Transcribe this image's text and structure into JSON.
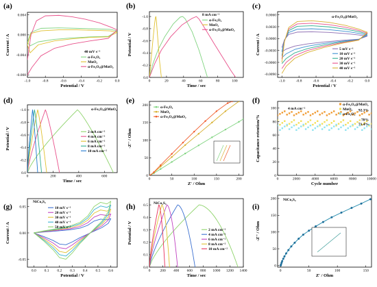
{
  "chart_data": [
    {
      "id": "a",
      "type": "line",
      "panel_label": "(a)",
      "xlabel": "Potential / V",
      "ylabel": "Current / A",
      "xlim": [
        -1.0,
        0.0
      ],
      "ylim": [
        -0.0085,
        0.0045
      ],
      "xreverse": false,
      "xticks": [
        -1.0,
        -0.8,
        -0.6,
        -0.4,
        -0.2,
        0.0
      ],
      "xticklabels": [
        "-1.0",
        "-0.8",
        "-0.6",
        "-0.4",
        "-0.2",
        "0.0"
      ],
      "yticks": [
        -0.008,
        -0.004,
        0.0,
        0.004
      ],
      "yticklabels": [
        "-0.008",
        "-0.004",
        "0.000",
        "0.004"
      ],
      "annotation": "40 mV s⁻¹",
      "series": [
        {
          "name": "α-Fe₂O₃",
          "color": "#7fd37f",
          "x": [
            -1.0,
            -0.96,
            -0.85,
            -0.65,
            -0.45,
            -0.25,
            -0.08,
            0.0,
            -0.1,
            -0.3,
            -0.5,
            -0.7,
            -0.88,
            -0.97,
            -1.0
          ],
          "y": [
            -0.0015,
            0.0005,
            0.0013,
            0.0014,
            0.0013,
            0.0012,
            0.0011,
            0.0008,
            -0.0003,
            -0.0004,
            -0.0006,
            -0.0009,
            -0.0014,
            -0.0022,
            -0.0015
          ]
        },
        {
          "name": "MnO₂",
          "color": "#e0c030",
          "x": [
            -1.0,
            -0.96,
            -0.85,
            -0.65,
            -0.45,
            -0.25,
            -0.08,
            0.0,
            -0.1,
            -0.3,
            -0.5,
            -0.7,
            -0.88,
            -0.97,
            -1.0
          ],
          "y": [
            -0.002,
            0.0003,
            0.0008,
            0.001,
            0.001,
            0.0009,
            0.0008,
            0.0005,
            -0.0004,
            -0.0005,
            -0.0008,
            -0.0012,
            -0.002,
            -0.0036,
            -0.002
          ]
        },
        {
          "name": "α-Fe₂O₃@MnO₂",
          "color": "#e8508a",
          "x": [
            -1.0,
            -0.96,
            -0.9,
            -0.8,
            -0.65,
            -0.5,
            -0.35,
            -0.2,
            -0.08,
            0.0,
            -0.1,
            -0.3,
            -0.5,
            -0.7,
            -0.85,
            -0.95,
            -1.0
          ],
          "y": [
            -0.005,
            0.0,
            0.0028,
            0.0038,
            0.0039,
            0.0036,
            0.0031,
            0.0024,
            0.0016,
            0.001,
            -0.0007,
            -0.0012,
            -0.0018,
            -0.0027,
            -0.0042,
            -0.0065,
            -0.008
          ]
        }
      ]
    },
    {
      "id": "b",
      "type": "line",
      "panel_label": "(b)",
      "xlabel": "Time / sec",
      "ylabel": "Potential / V",
      "xlim": [
        0,
        110
      ],
      "ylim": [
        0.0,
        -1.08
      ],
      "xreverse": false,
      "xticks": [
        0,
        20,
        40,
        60,
        80,
        100
      ],
      "xticklabels": [
        "0",
        "20",
        "40",
        "60",
        "80",
        "100"
      ],
      "yticks": [
        0.0,
        -0.2,
        -0.4,
        -0.6,
        -0.8,
        -1.0
      ],
      "yticklabels": [
        "0.0",
        "-0.2",
        "-0.4",
        "-0.6",
        "-0.8",
        "-1.0"
      ],
      "annotation": "8 mA cm⁻²",
      "series": [
        {
          "name": "α-Fe₂O₃",
          "color": "#7fd37f",
          "x": [
            0,
            4,
            10,
            18,
            28,
            36,
            39,
            42,
            50,
            58,
            68
          ],
          "y": [
            0,
            -0.22,
            -0.45,
            -0.67,
            -0.88,
            -0.99,
            -1.0,
            -0.96,
            -0.75,
            -0.45,
            0
          ]
        },
        {
          "name": "MnO₂",
          "color": "#e0c030",
          "x": [
            0,
            2,
            4,
            6,
            7,
            7.5,
            8,
            10,
            12,
            14
          ],
          "y": [
            0,
            -0.3,
            -0.6,
            -0.88,
            -0.98,
            -1.0,
            -0.96,
            -0.6,
            -0.25,
            0
          ]
        },
        {
          "name": "α-Fe₂O₃@MnO₂",
          "color": "#e8508a",
          "x": [
            0,
            6,
            14,
            25,
            38,
            50,
            55,
            58,
            66,
            76,
            88,
            96,
            101
          ],
          "y": [
            0,
            -0.22,
            -0.45,
            -0.67,
            -0.86,
            -0.97,
            -1.0,
            -0.96,
            -0.78,
            -0.55,
            -0.28,
            -0.1,
            0
          ]
        }
      ]
    },
    {
      "id": "c",
      "type": "line",
      "panel_label": "(c)",
      "xlabel": "Potential / V",
      "ylabel": "Current / A",
      "xlim": [
        -1.05,
        0.05
      ],
      "ylim": [
        -0.0098,
        0.0068
      ],
      "xreverse": false,
      "xticks": [
        -1.0,
        -0.8,
        -0.6,
        -0.4,
        -0.2,
        0.0
      ],
      "xticklabels": [
        "-1.0",
        "-0.8",
        "-0.6",
        "-0.4",
        "-0.2",
        "0.0"
      ],
      "yticks": [
        -0.009,
        -0.006,
        -0.003,
        0.0,
        0.003,
        0.006
      ],
      "yticklabels": [
        "-0.0090",
        "-0.0060",
        "-0.0030",
        "0.0000",
        "0.0030",
        "0.0060"
      ],
      "title_in_panel": "α-Fe₂O₃@MnO₂",
      "series": [
        {
          "name": "5 mV s⁻¹",
          "color": "#8c6bb1",
          "scale": 0.38
        },
        {
          "name": "10 mV s⁻¹",
          "color": "#3a8fd0",
          "scale": 0.55
        },
        {
          "name": "20 mV s⁻¹",
          "color": "#2fae8f",
          "scale": 0.72
        },
        {
          "name": "30 mV s⁻¹",
          "color": "#e8508a",
          "scale": 0.86
        },
        {
          "name": "40 mV s⁻¹",
          "color": "#d8b030",
          "scale": 1.0
        }
      ],
      "base_curve": {
        "x": [
          -1.0,
          -0.97,
          -0.92,
          -0.82,
          -0.65,
          -0.45,
          -0.25,
          -0.1,
          0.0,
          -0.1,
          -0.3,
          -0.5,
          -0.7,
          -0.85,
          -0.95,
          -1.0
        ],
        "y": [
          -0.006,
          -0.0008,
          0.0028,
          0.0043,
          0.0045,
          0.0041,
          0.0033,
          0.0024,
          0.0016,
          -0.0004,
          -0.0012,
          -0.0022,
          -0.0035,
          -0.005,
          -0.007,
          -0.0088
        ]
      }
    },
    {
      "id": "d",
      "type": "line",
      "panel_label": "(d)",
      "xlabel": "Time / sec",
      "ylabel": "Potential / V",
      "xlim": [
        0,
        700
      ],
      "ylim": [
        0.0,
        -1.08
      ],
      "xreverse": false,
      "xticks": [
        0,
        200,
        400,
        600
      ],
      "xticklabels": [
        "0",
        "200",
        "400",
        "600"
      ],
      "yticks": [
        0.0,
        -0.2,
        -0.4,
        -0.6,
        -0.8,
        -1.0
      ],
      "yticklabels": [
        "0.0",
        "-0.2",
        "-0.4",
        "-0.6",
        "-0.8",
        "-1.0"
      ],
      "title_in_panel": "α-Fe₂O₃@MnO₂",
      "series": [
        {
          "name": "2 mA cm⁻²",
          "color": "#8ed36b",
          "T": 670,
          "peak": 390
        },
        {
          "name": "4 mA cm⁻²",
          "color": "#e8508a",
          "T": 250,
          "peak": 140
        },
        {
          "name": "6 mA cm⁻²",
          "color": "#e0c030",
          "T": 150,
          "peak": 80
        },
        {
          "name": "8 mA cm⁻²",
          "color": "#2fae8f",
          "T": 110,
          "peak": 55
        },
        {
          "name": "10 mA cm⁻²",
          "color": "#1f77d0",
          "T": 80,
          "peak": 40
        }
      ]
    },
    {
      "id": "e",
      "type": "line",
      "panel_label": "(e)",
      "xlabel": "Z' / Ohm",
      "ylabel": "-Z'' / Ohm",
      "xlim": [
        0,
        210
      ],
      "ylim": [
        0,
        210
      ],
      "xreverse": false,
      "xticks": [
        0,
        50,
        100,
        150,
        200
      ],
      "xticklabels": [
        "0",
        "50",
        "100",
        "150",
        "200"
      ],
      "yticks": [
        0,
        50,
        100,
        150,
        200
      ],
      "yticklabels": [
        "0",
        "50",
        "100",
        "150",
        "200"
      ],
      "series": [
        {
          "name": "α-Fe₂O₃",
          "color": "#7fd37f",
          "x": [
            1,
            10,
            25,
            50,
            80,
            110,
            140,
            170,
            200,
            210
          ],
          "y": [
            0,
            6,
            18,
            38,
            62,
            85,
            108,
            130,
            152,
            160
          ]
        },
        {
          "name": "MnO₂",
          "color": "#d8b030",
          "x": [
            1,
            10,
            25,
            50,
            80,
            110,
            140,
            170,
            200
          ],
          "y": [
            0,
            8,
            25,
            52,
            86,
            118,
            150,
            182,
            210
          ]
        },
        {
          "name": "α-Fe₂O₃@MnO₂",
          "color": "#f05a28",
          "x": [
            1,
            10,
            25,
            50,
            75,
            100,
            125,
            150,
            175,
            185
          ],
          "y": [
            0,
            9,
            29,
            61,
            93,
            124,
            154,
            182,
            205,
            210
          ]
        }
      ]
    },
    {
      "id": "f",
      "type": "scatter",
      "panel_label": "(f)",
      "xlabel": "Cycle number",
      "ylabel": "Capacitance retention/%",
      "xlim": [
        0,
        10000
      ],
      "ylim": [
        0,
        110
      ],
      "xreverse": false,
      "xticks": [
        0,
        2000,
        4000,
        6000,
        8000,
        10000
      ],
      "xticklabels": [
        "0",
        "2000",
        "4000",
        "6000",
        "8000",
        "10000"
      ],
      "yticks": [
        0,
        20,
        40,
        60,
        80,
        100
      ],
      "yticklabels": [
        "0",
        "20",
        "40",
        "60",
        "80",
        "100"
      ],
      "annotation": "4 mA cm⁻²",
      "series": [
        {
          "name": "α-Fe₂O₃@MnO₂",
          "color": "#f09a30",
          "level": 92.3,
          "spread": 3,
          "end_label": "92.3%"
        },
        {
          "name": "MnO₂",
          "color": "#f2df5a",
          "level": 78,
          "spread": 4,
          "end_label": "78%"
        },
        {
          "name": "α-Fe₂O₃",
          "color": "#8fe3ef",
          "level": 71.4,
          "spread": 4,
          "end_label": "71.4%"
        }
      ]
    },
    {
      "id": "g",
      "type": "line",
      "panel_label": "(g)",
      "xlabel": "Potential / V",
      "ylabel": "Current / A",
      "xlim": [
        -0.05,
        0.65
      ],
      "ylim": [
        -0.065,
        0.065
      ],
      "xreverse": false,
      "xticks": [
        0.0,
        0.1,
        0.2,
        0.3,
        0.4,
        0.5,
        0.6
      ],
      "xticklabels": [
        "0.0",
        "0.1",
        "0.2",
        "0.3",
        "0.4",
        "0.5",
        "0.6"
      ],
      "yticks": [
        -0.05,
        0.0,
        0.05
      ],
      "yticklabels": [
        "-0.05",
        "0.00",
        "0.05"
      ],
      "title_in_panel": "NiCo₂S₄",
      "series": [
        {
          "name": "10 mV s⁻¹",
          "color": "#3a6fd0",
          "scale": 0.45
        },
        {
          "name": "20 mV s⁻¹",
          "color": "#c040c0",
          "scale": 0.6
        },
        {
          "name": "30 mV s⁻¹",
          "color": "#e0c030",
          "scale": 0.75
        },
        {
          "name": "40 mV s⁻¹",
          "color": "#38b0d0",
          "scale": 0.88
        },
        {
          "name": "50 mV s⁻¹",
          "color": "#8ed36b",
          "scale": 1.0
        }
      ],
      "base_curve": {
        "x": [
          0.0,
          0.08,
          0.18,
          0.28,
          0.36,
          0.42,
          0.47,
          0.52,
          0.57,
          0.6,
          0.58,
          0.53,
          0.48,
          0.42,
          0.36,
          0.3,
          0.25,
          0.2,
          0.15,
          0.08,
          0.0
        ],
        "y": [
          0.0,
          0.004,
          0.008,
          0.013,
          0.02,
          0.032,
          0.05,
          0.058,
          0.055,
          0.06,
          0.04,
          0.022,
          0.01,
          -0.005,
          -0.02,
          -0.038,
          -0.05,
          -0.047,
          -0.032,
          -0.016,
          0.0
        ]
      }
    },
    {
      "id": "h",
      "type": "line",
      "panel_label": "(h)",
      "xlabel": "Time / sec",
      "ylabel": "Potential / V",
      "xlim": [
        0,
        1400
      ],
      "ylim": [
        0.0,
        0.55
      ],
      "xreverse": false,
      "xticks": [
        0,
        200,
        400,
        600,
        800,
        1000,
        1200,
        1400
      ],
      "xticklabels": [
        "0",
        "200",
        "400",
        "600",
        "800",
        "1000",
        "1200",
        "1400"
      ],
      "yticks": [
        0.0,
        0.1,
        0.2,
        0.3,
        0.4,
        0.5
      ],
      "yticklabels": [
        "0.0",
        "0.1",
        "0.2",
        "0.3",
        "0.4",
        "0.5"
      ],
      "title_in_panel": "NiCo₂S₄",
      "series": [
        {
          "name": "2 mA cm⁻²",
          "color": "#8ed36b",
          "T": 1320,
          "peak": 740
        },
        {
          "name": "4 mA cm⁻²",
          "color": "#3a6fd0",
          "T": 680,
          "peak": 420
        },
        {
          "name": "6 mA cm⁻²",
          "color": "#c040c0",
          "T": 420,
          "peak": 260
        },
        {
          "name": "8 mA cm⁻²",
          "color": "#e0c030",
          "T": 300,
          "peak": 185
        },
        {
          "name": "10 mA cm⁻²",
          "color": "#e8305a",
          "T": 230,
          "peak": 140
        }
      ]
    },
    {
      "id": "i",
      "type": "line",
      "panel_label": "(i)",
      "xlabel": "Z' / Ohm",
      "ylabel": "-Z'' / Ohm",
      "xlim": [
        -5,
        160
      ],
      "ylim": [
        -5,
        210
      ],
      "xreverse": false,
      "xticks": [
        0,
        50,
        100,
        150
      ],
      "xticklabels": [
        "0",
        "50",
        "100",
        "150"
      ],
      "yticks": [
        0,
        50,
        100,
        150,
        200
      ],
      "yticklabels": [
        "0",
        "50",
        "100",
        "150",
        "200"
      ],
      "title_in_panel": "NiCo₂S₄",
      "series": [
        {
          "name": "NiCo₂S₄",
          "color": "#2a8fb0",
          "marker_color": "#1e6e9a",
          "x": [
            0.5,
            1,
            2,
            3,
            5,
            7,
            10,
            14,
            19,
            25,
            32,
            40,
            50,
            62,
            75,
            90,
            107,
            125,
            142,
            158
          ],
          "y": [
            0,
            3,
            8,
            13,
            20,
            27,
            36,
            46,
            57,
            68,
            80,
            92,
            104,
            117,
            130,
            144,
            158,
            172,
            185,
            198
          ]
        }
      ]
    }
  ]
}
